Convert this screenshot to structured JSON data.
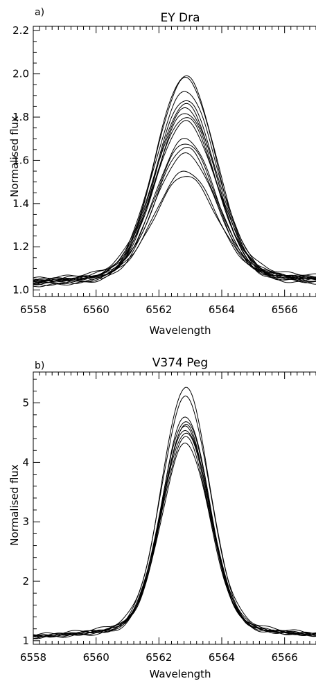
{
  "chart_data": [
    {
      "type": "line",
      "panel_label": "a)",
      "title": "EY Dra",
      "xlabel": "Wavelength",
      "ylabel": "Normalised flux",
      "xlim": [
        6558,
        6567
      ],
      "ylim": [
        0.97,
        2.22
      ],
      "xticks": [
        6558,
        6560,
        6562,
        6564,
        6566
      ],
      "xtick_labels": [
        "6558",
        "6560",
        "6562",
        "6564",
        "6566"
      ],
      "yticks": [
        1.0,
        1.2,
        1.4,
        1.6,
        1.8,
        2.0,
        2.2
      ],
      "ytick_labels": [
        "1.0",
        "1.2",
        "1.4",
        "1.6",
        "1.8",
        "2.0",
        "2.2"
      ],
      "line_center": 6562.85,
      "profile_width": 0.95,
      "series": [
        {
          "peak": 1.99,
          "cont_left": 1.03,
          "cont_right": 1.04,
          "wing": 0.04
        },
        {
          "peak": 1.98,
          "cont_left": 1.02,
          "cont_right": 1.03,
          "wing": 0.03
        },
        {
          "peak": 1.92,
          "cont_left": 1.04,
          "cont_right": 1.05,
          "wing": 0.05
        },
        {
          "peak": 1.88,
          "cont_left": 1.03,
          "cont_right": 1.04,
          "wing": 0.04
        },
        {
          "peak": 1.86,
          "cont_left": 1.02,
          "cont_right": 1.02,
          "wing": 0.03
        },
        {
          "peak": 1.84,
          "cont_left": 1.03,
          "cont_right": 1.03,
          "wing": 0.06
        },
        {
          "peak": 1.82,
          "cont_left": 1.01,
          "cont_right": 1.03,
          "wing": 0.04
        },
        {
          "peak": 1.8,
          "cont_left": 1.04,
          "cont_right": 1.05,
          "wing": 0.03
        },
        {
          "peak": 1.78,
          "cont_left": 1.02,
          "cont_right": 1.04,
          "wing": 0.05
        },
        {
          "peak": 1.7,
          "cont_left": 1.03,
          "cont_right": 1.02,
          "wing": 0.04
        },
        {
          "peak": 1.68,
          "cont_left": 1.02,
          "cont_right": 1.03,
          "wing": 0.05
        },
        {
          "peak": 1.66,
          "cont_left": 1.01,
          "cont_right": 1.04,
          "wing": 0.03
        },
        {
          "peak": 1.63,
          "cont_left": 1.02,
          "cont_right": 1.02,
          "wing": 0.06
        },
        {
          "peak": 1.55,
          "cont_left": 1.03,
          "cont_right": 1.04,
          "wing": 0.04
        },
        {
          "peak": 1.53,
          "cont_left": 1.02,
          "cont_right": 1.03,
          "wing": 0.05
        }
      ]
    },
    {
      "type": "line",
      "panel_label": "b)",
      "title": "V374 Peg",
      "xlabel": "Wavelength",
      "ylabel": "Normalised flux",
      "xlim": [
        6558,
        6567
      ],
      "ylim": [
        0.94,
        5.52
      ],
      "xticks": [
        6558,
        6560,
        6562,
        6564,
        6566
      ],
      "xtick_labels": [
        "6558",
        "6560",
        "6562",
        "6564",
        "6566"
      ],
      "yticks": [
        1,
        2,
        3,
        4,
        5
      ],
      "ytick_labels": [
        "1",
        "2",
        "3",
        "4",
        "5"
      ],
      "line_center": 6562.85,
      "profile_width": 0.75,
      "series": [
        {
          "peak": 5.26,
          "cont_left": 1.05,
          "cont_right": 1.06,
          "wing": 0.2
        },
        {
          "peak": 5.1,
          "cont_left": 1.07,
          "cont_right": 1.08,
          "wing": 0.25
        },
        {
          "peak": 4.77,
          "cont_left": 1.04,
          "cont_right": 1.05,
          "wing": 0.18
        },
        {
          "peak": 4.7,
          "cont_left": 1.06,
          "cont_right": 1.04,
          "wing": 0.22
        },
        {
          "peak": 4.63,
          "cont_left": 1.03,
          "cont_right": 1.06,
          "wing": 0.15
        },
        {
          "peak": 4.6,
          "cont_left": 1.05,
          "cont_right": 1.07,
          "wing": 0.2
        },
        {
          "peak": 4.55,
          "cont_left": 1.04,
          "cont_right": 1.05,
          "wing": 0.24
        },
        {
          "peak": 4.5,
          "cont_left": 1.06,
          "cont_right": 1.08,
          "wing": 0.17
        },
        {
          "peak": 4.42,
          "cont_left": 1.03,
          "cont_right": 1.04,
          "wing": 0.21
        },
        {
          "peak": 4.32,
          "cont_left": 1.05,
          "cont_right": 1.06,
          "wing": 0.19
        }
      ]
    }
  ]
}
